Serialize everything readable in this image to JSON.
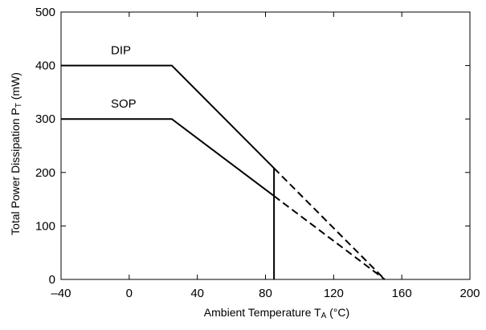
{
  "chart_data": {
    "type": "line",
    "xlabel": {
      "main": "Ambient Temperature T",
      "sub": "A",
      "unit": " (°C)"
    },
    "ylabel": {
      "main": "Total Power Dissipation P",
      "sub": "T",
      "unit": " (mW)"
    },
    "xlim": [
      -40,
      200
    ],
    "ylim": [
      0,
      500
    ],
    "x_ticks": [
      -40,
      0,
      40,
      80,
      120,
      160,
      200
    ],
    "y_ticks": [
      0,
      100,
      200,
      300,
      400,
      500
    ],
    "x_tick_labels": [
      "–40",
      "0",
      "40",
      "80",
      "120",
      "160",
      "200"
    ],
    "y_tick_labels": [
      "0",
      "100",
      "200",
      "300",
      "400",
      "500"
    ],
    "grid": false,
    "series": [
      {
        "name": "DIP",
        "solid": [
          [
            -40,
            400
          ],
          [
            25,
            400
          ],
          [
            85,
            208
          ]
        ],
        "dashed": [
          [
            85,
            208
          ],
          [
            150,
            0
          ]
        ]
      },
      {
        "name": "SOP",
        "solid": [
          [
            -40,
            300
          ],
          [
            25,
            300
          ],
          [
            85,
            156
          ]
        ],
        "dashed": [
          [
            85,
            156
          ],
          [
            150,
            0
          ]
        ]
      }
    ],
    "vertical_line": {
      "x": 85,
      "y_from": 0,
      "y_to": 208
    }
  }
}
